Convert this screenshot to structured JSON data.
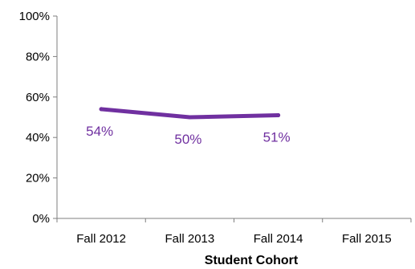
{
  "chart_data": {
    "type": "line",
    "title": "",
    "xlabel": "Student Cohort",
    "ylabel": "",
    "categories": [
      "Fall 2012",
      "Fall 2013",
      "Fall 2014",
      "Fall 2015"
    ],
    "series": [
      {
        "values": [
          54,
          50,
          51,
          null
        ],
        "data_labels": [
          "54%",
          "50%",
          "51%",
          ""
        ]
      }
    ],
    "ylim": [
      0,
      100
    ],
    "yticks": [
      0,
      20,
      40,
      60,
      80,
      100
    ],
    "ytick_labels": [
      "0%",
      "20%",
      "40%",
      "60%",
      "80%",
      "100%"
    ],
    "grid": false,
    "legend": "none",
    "colors": {
      "series": "#7030A0",
      "axis": "#7f7f7f",
      "text": "#000000"
    }
  }
}
